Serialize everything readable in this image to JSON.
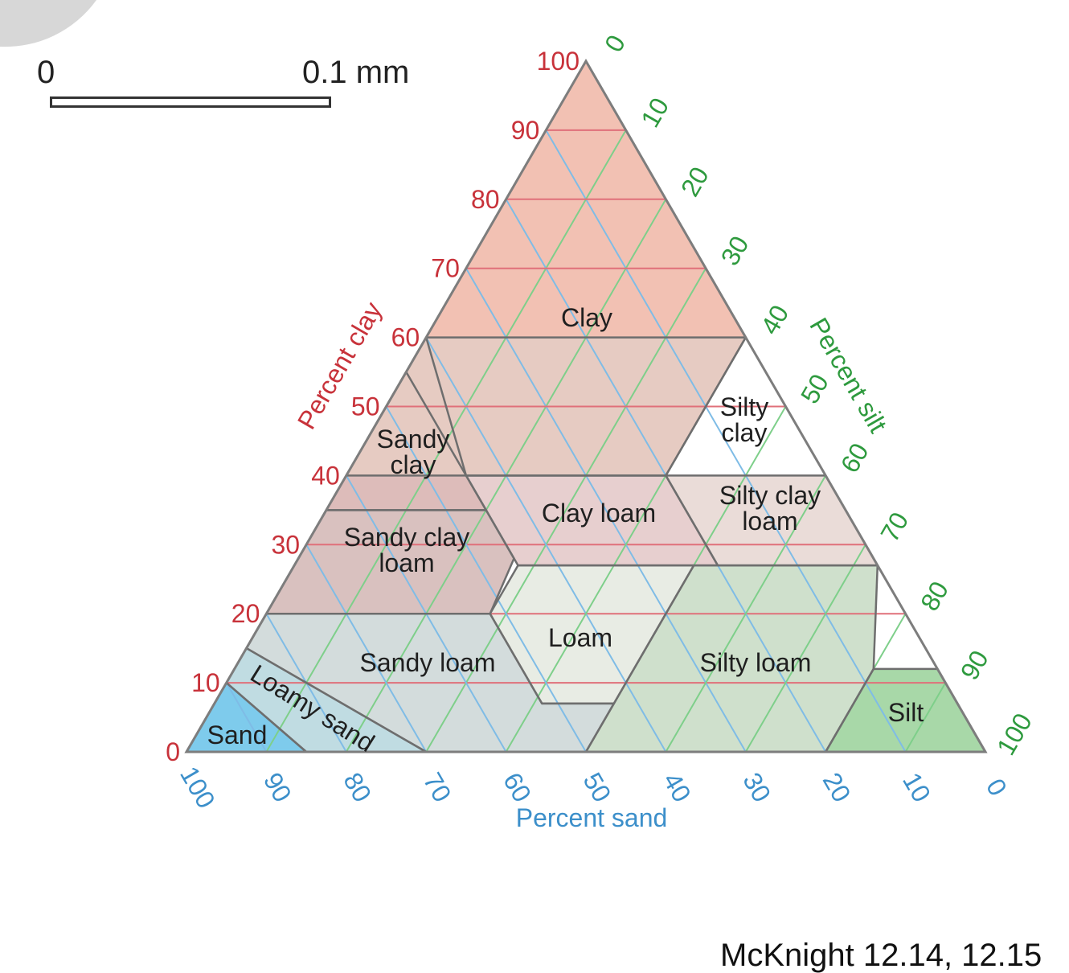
{
  "scale_bar": {
    "start_label": "0",
    "end_label": "0.1 mm"
  },
  "axes": {
    "clay": {
      "title": "Percent clay",
      "ticks": [
        "0",
        "10",
        "20",
        "30",
        "40",
        "50",
        "60",
        "70",
        "80",
        "90",
        "100"
      ],
      "color": "#c8323a"
    },
    "silt": {
      "title": "Percent silt",
      "ticks": [
        "0",
        "10",
        "20",
        "30",
        "40",
        "50",
        "60",
        "70",
        "80",
        "90",
        "100"
      ],
      "color": "#2e9a3e"
    },
    "sand": {
      "title": "Percent sand",
      "ticks": [
        "100",
        "90",
        "80",
        "70",
        "60",
        "50",
        "40",
        "30",
        "20",
        "10",
        "0"
      ],
      "color": "#3c8fca"
    }
  },
  "regions": [
    {
      "id": "clay",
      "lines": [
        "Clay"
      ],
      "fill": "#f2c1b3",
      "vertices": [
        [
          0,
          100
        ],
        [
          55,
          45
        ],
        [
          40,
          60
        ],
        [
          45,
          40
        ],
        [
          20,
          40
        ],
        [
          0,
          60
        ]
      ],
      "label_at": [
        19,
        62
      ]
    },
    {
      "id": "sandy-clay",
      "lines": [
        "Sandy",
        "clay"
      ],
      "fill": "#ddbcba",
      "vertices": [
        [
          65,
          35
        ],
        [
          45,
          55
        ],
        [
          45,
          35
        ]
      ],
      "label_at": [
        51,
        38
      ]
    },
    {
      "id": "silty-clay",
      "lines": [
        "Silty",
        "clay"
      ],
      "fill": "#e6cbc2",
      "vertices": [
        [
          0,
          60
        ],
        [
          40,
          60
        ],
        [
          60,
          40
        ],
        [
          60,
          40
        ],
        [
          20,
          40
        ]
      ],
      "label_at": [
        48,
        44
      ]
    },
    {
      "id": "clay-loam",
      "lines": [
        "Clay loam"
      ],
      "fill": "#e7cfcf",
      "vertices": [
        [
          45,
          40
        ],
        [
          20,
          40
        ],
        [
          20,
          27
        ],
        [
          45,
          27
        ]
      ],
      "label_at": [
        33,
        33
      ]
    },
    {
      "id": "silty-clay-loam",
      "lines": [
        "Silty clay",
        "loam"
      ],
      "fill": "#eadcd8",
      "vertices": [
        [
          20,
          40
        ],
        [
          0,
          40
        ],
        [
          0,
          27
        ],
        [
          20,
          27
        ]
      ],
      "label_at": [
        8,
        33
      ]
    },
    {
      "id": "sandy-clay-loam",
      "lines": [
        "Sandy clay",
        "loam"
      ],
      "fill": "#d9c1bf",
      "vertices": [
        [
          80,
          20
        ],
        [
          65,
          35
        ],
        [
          45,
          35
        ],
        [
          45,
          28
        ],
        [
          52,
          20
        ]
      ],
      "label_at": [
        60,
        26
      ]
    },
    {
      "id": "loam",
      "lines": [
        "Loam"
      ],
      "fill": "#e8ece4",
      "vertices": [
        [
          45,
          27
        ],
        [
          52,
          20
        ],
        [
          52,
          7
        ],
        [
          43,
          7
        ],
        [
          23,
          27
        ]
      ],
      "label_at": [
        41,
        15
      ]
    },
    {
      "id": "sandy-loam",
      "lines": [
        "Sandy loam"
      ],
      "fill": "#d3dcdc",
      "vertices": [
        [
          85,
          15
        ],
        [
          70,
          0
        ],
        [
          50,
          0
        ],
        [
          43,
          7
        ],
        [
          52,
          7
        ],
        [
          52,
          20
        ],
        [
          80,
          20
        ]
      ],
      "label_at": [
        63,
        11
      ]
    },
    {
      "id": "silty-loam",
      "lines": [
        "Silty loam"
      ],
      "fill": "#cfe0cc",
      "vertices": [
        [
          50,
          0
        ],
        [
          23,
          27
        ],
        [
          0,
          27
        ],
        [
          8,
          12
        ],
        [
          8,
          12
        ],
        [
          20,
          0
        ]
      ],
      "label_at": [
        21,
        11
      ]
    },
    {
      "id": "silt",
      "lines": [
        "Silt"
      ],
      "fill": "#a8d8a8",
      "vertices": [
        [
          20,
          0
        ],
        [
          8,
          12
        ],
        [
          0,
          12
        ],
        [
          0,
          0
        ]
      ],
      "label_at": [
        9,
        6
      ]
    },
    {
      "id": "loamy-sand",
      "lines": [
        "Loamy sand"
      ],
      "fill": "#c0dce2",
      "vertices": [
        [
          90,
          10
        ],
        [
          85,
          15
        ],
        [
          70,
          0
        ],
        [
          85,
          0
        ]
      ],
      "label_at": [
        83,
        4
      ]
    },
    {
      "id": "sand",
      "lines": [
        "Sand"
      ],
      "fill": "#7ecbec",
      "vertices": [
        [
          100,
          0
        ],
        [
          90,
          10
        ],
        [
          85,
          0
        ]
      ],
      "label_at": [
        92,
        3
      ]
    }
  ],
  "citation": "McKnight 12.14, 12.15"
}
